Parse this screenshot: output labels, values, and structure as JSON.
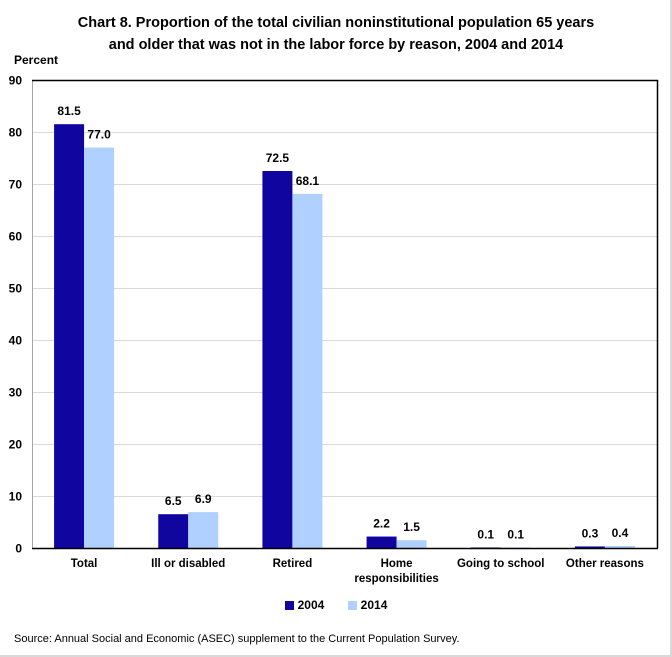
{
  "chart_data": {
    "type": "bar",
    "title": "Chart 8.  Proportion of the total civilian noninstitutional population 65 years and older that was not in the labor force by reason, 2004 and 2014",
    "title_lines": [
      "Chart 8.  Proportion of the total civilian noninstitutional population 65 years",
      "and older that was not in the labor force by reason, 2004 and 2014"
    ],
    "xlabel": "",
    "ylabel": "Percent",
    "ylim": [
      0,
      90
    ],
    "yticks": [
      0,
      10,
      20,
      30,
      40,
      50,
      60,
      70,
      80,
      90
    ],
    "grid": true,
    "legend_position": "bottom",
    "categories": [
      [
        "Total"
      ],
      [
        "Ill or disabled"
      ],
      [
        "Retired"
      ],
      [
        "Home",
        "responsibilities"
      ],
      [
        "Going to school"
      ],
      [
        "Other reasons"
      ]
    ],
    "series": [
      {
        "name": "2004",
        "color": "#10069F",
        "values": [
          81.5,
          6.5,
          72.5,
          2.2,
          0.1,
          0.3
        ],
        "labels": [
          "81.5",
          "6.5",
          "72.5",
          "2.2",
          "0.1",
          "0.3"
        ]
      },
      {
        "name": "2014",
        "color": "#B0D0FF",
        "values": [
          77.0,
          6.9,
          68.1,
          1.5,
          0.1,
          0.4
        ],
        "labels": [
          "77.0",
          "6.9",
          "68.1",
          "1.5",
          "0.1",
          "0.4"
        ]
      }
    ],
    "source": "Source:  Annual Social and Economic (ASEC) supplement to the Current Population Survey."
  }
}
